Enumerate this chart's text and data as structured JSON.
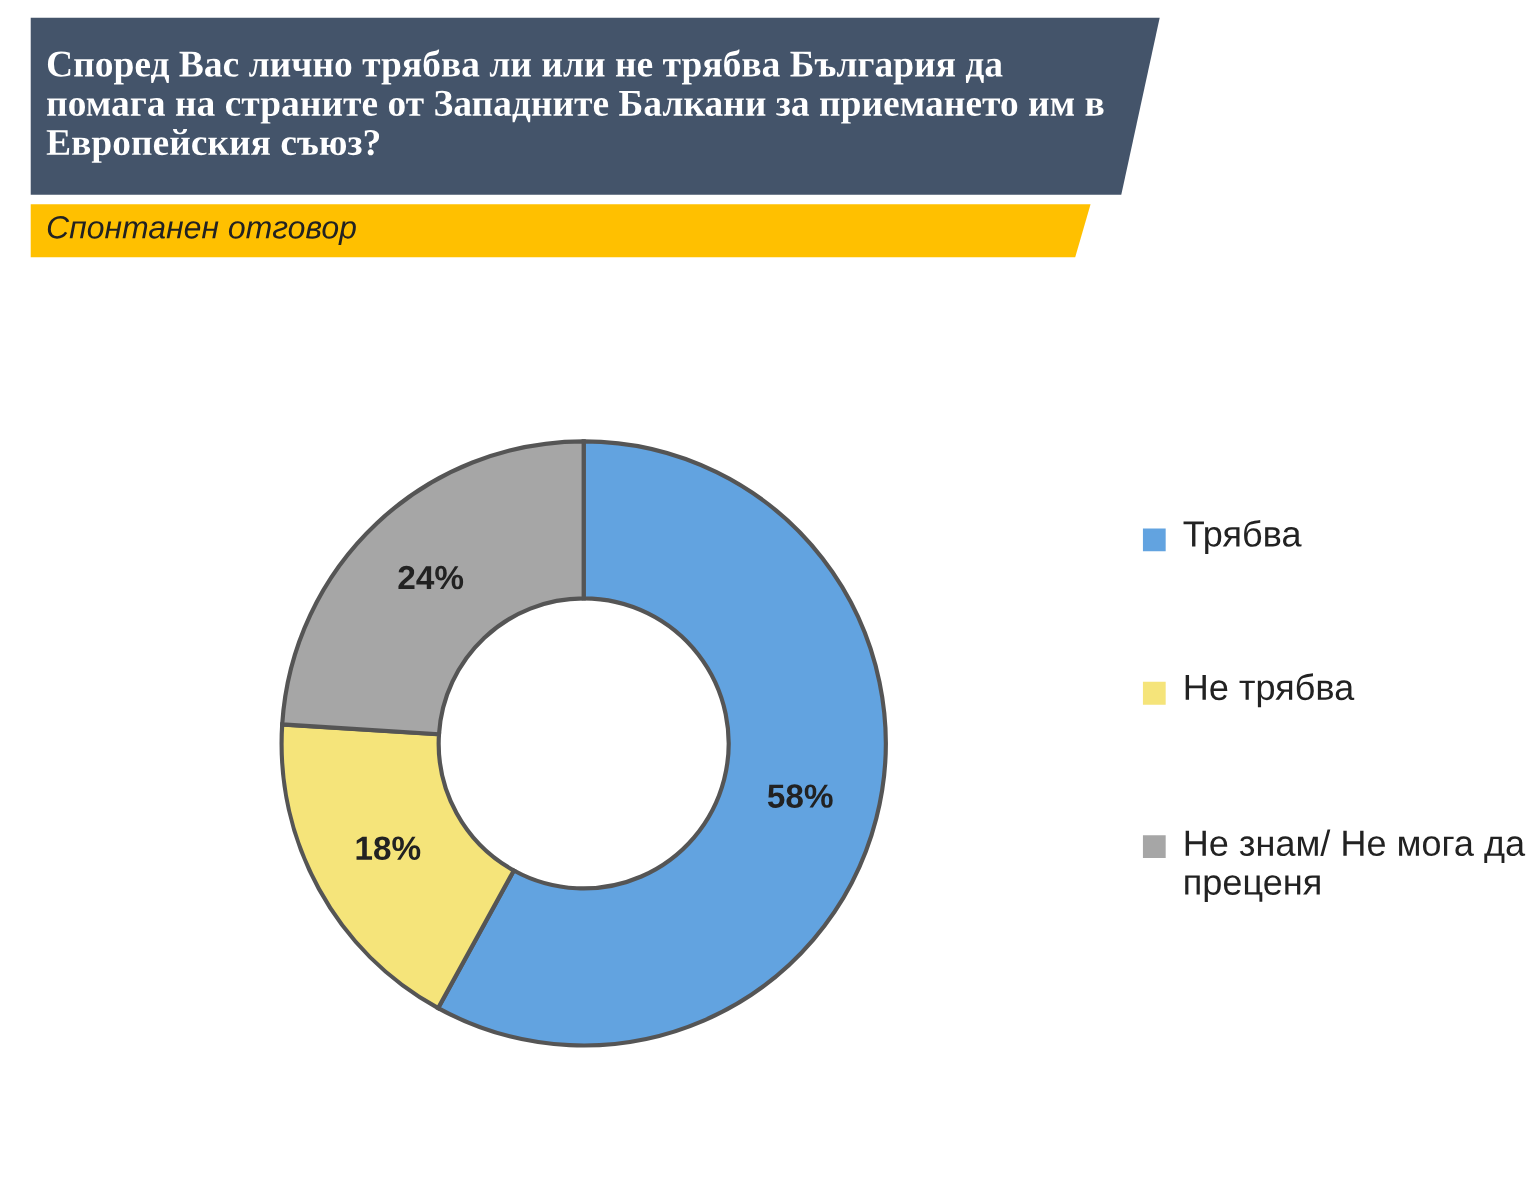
{
  "chart_data": {
    "type": "donut",
    "title": "Според Вас лично трябва ли или не трябва България да помага на страните от Западните Балкани за приемането им в Европейския съюз?",
    "subtitle": "Спонтанен отговор",
    "categories": [
      "Трябва",
      "Не трябва",
      "Не знам/ Не мога да преценя"
    ],
    "values": [
      58,
      18,
      24
    ],
    "colors": [
      "#62a3e0",
      "#f5e47a",
      "#a6a6a6"
    ],
    "value_labels": [
      "58%",
      "18%",
      "24%"
    ],
    "legend": "right"
  }
}
